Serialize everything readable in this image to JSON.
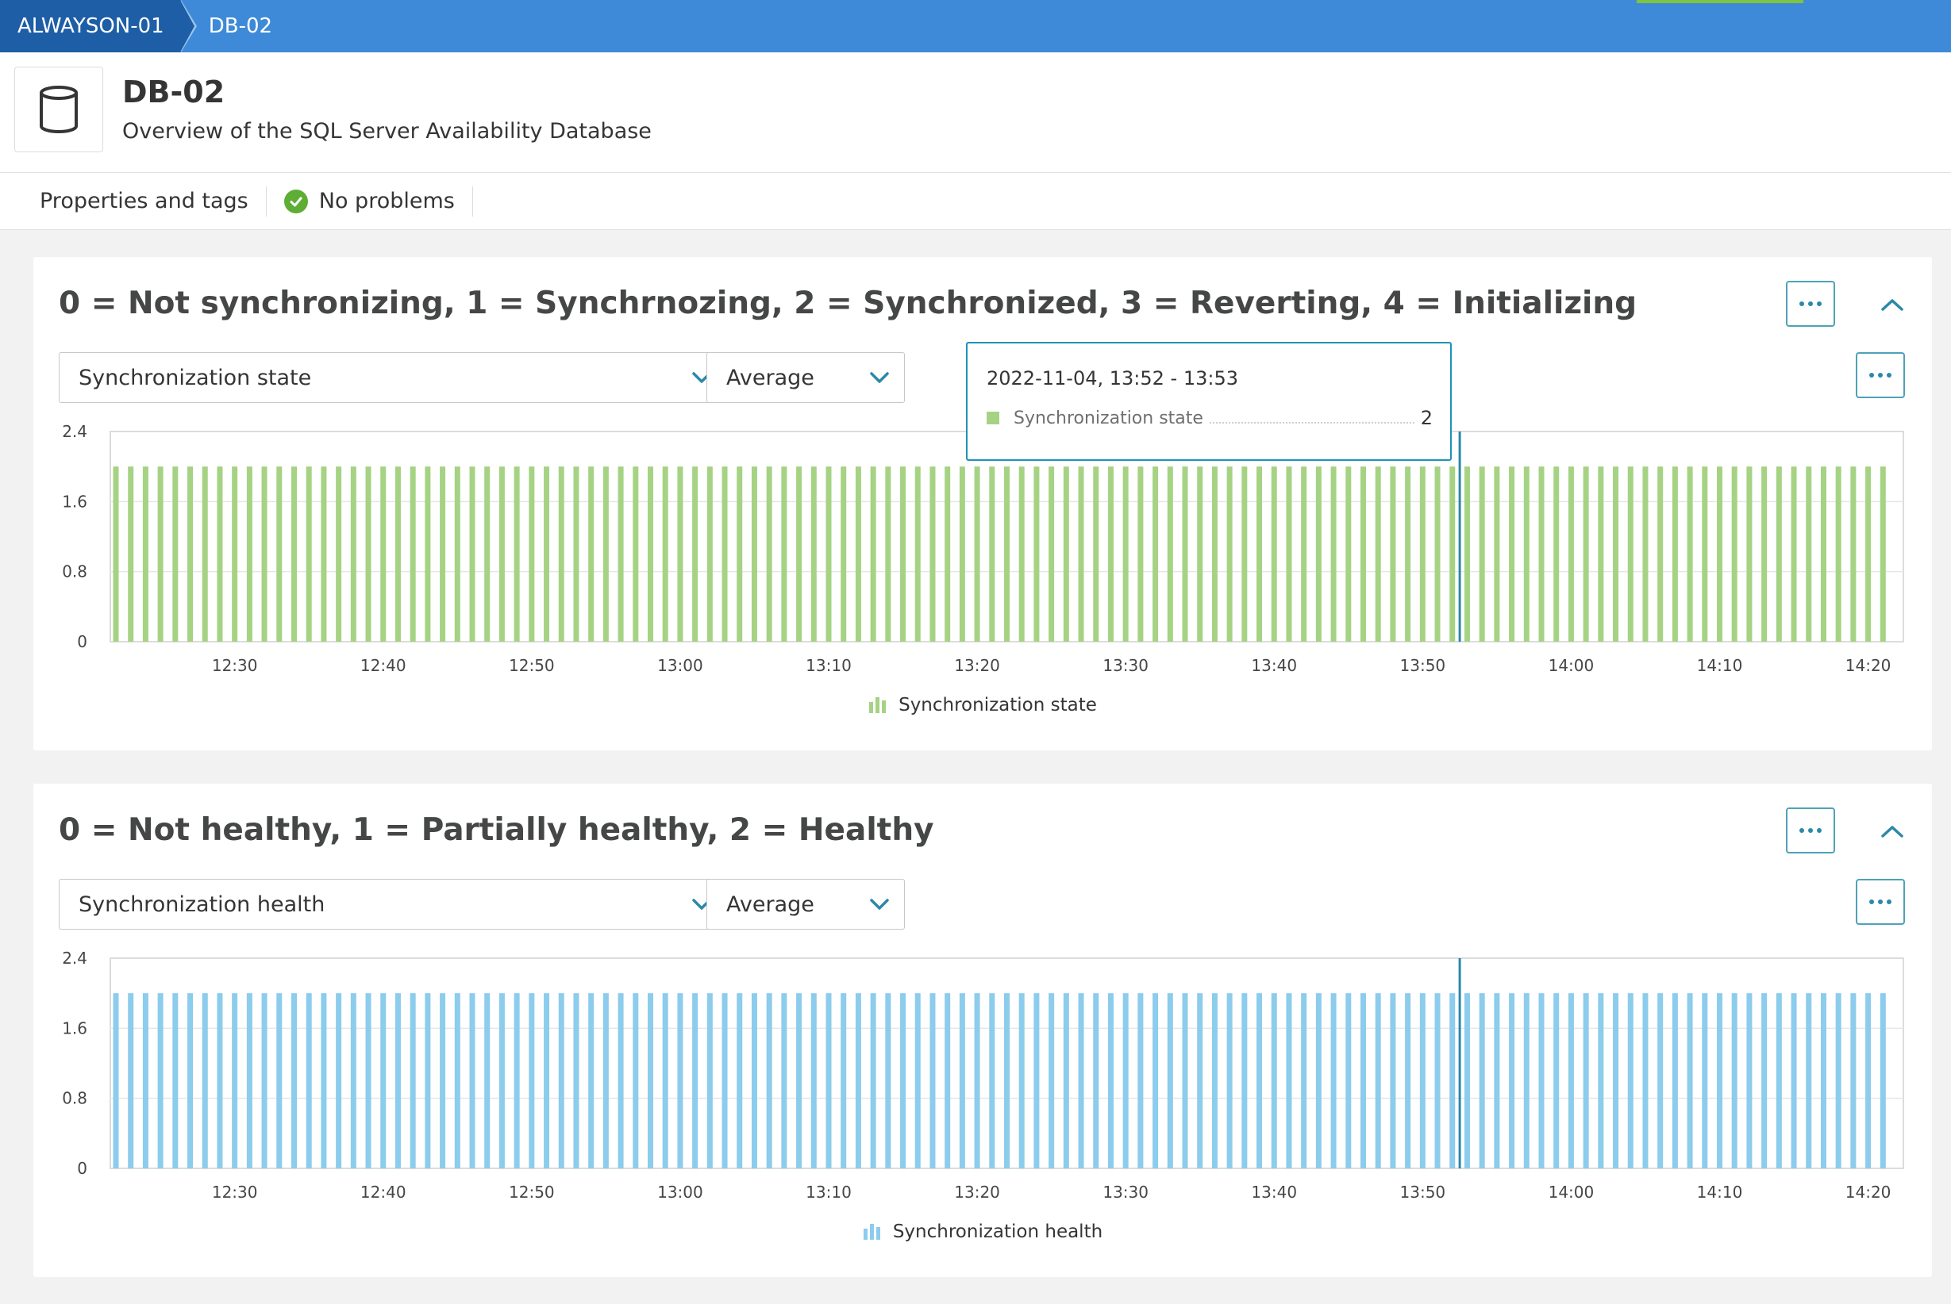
{
  "breadcrumb": {
    "items": [
      "ALWAYSON-01",
      "DB-02"
    ]
  },
  "header": {
    "title": "DB-02",
    "subtitle": "Overview of the SQL Server Availability Database",
    "icon": "database-icon"
  },
  "tabs": {
    "properties_label": "Properties and tags",
    "problems_label": "No problems"
  },
  "colors": {
    "accent": "#3e8ad8",
    "bar_green": "#a5d383",
    "bar_blue": "#8cccec",
    "marker": "#2b89a8",
    "ok": "#5ead35"
  },
  "panels": [
    {
      "title": "0 = Not synchronizing, 1 = Synchrnozing, 2 = Synchronized, 3 = Reverting, 4 = Initializing",
      "metric": "Synchronization state",
      "aggregation": "Average",
      "legend": "Synchronization state"
    },
    {
      "title": "0 = Not healthy, 1 = Partially healthy, 2 = Healthy",
      "metric": "Synchronization health",
      "aggregation": "Average",
      "legend": "Synchronization health"
    }
  ],
  "tooltip": {
    "time": "2022-11-04, 13:52 - 13:53",
    "label": "Synchronization state",
    "value": "2"
  },
  "chart_data": [
    {
      "type": "bar",
      "series": [
        {
          "name": "Synchronization state",
          "value_per_minute": 2
        }
      ],
      "x_range": [
        "12:22",
        "14:21"
      ],
      "x_ticks": [
        "12:30",
        "12:40",
        "12:50",
        "13:00",
        "13:10",
        "13:20",
        "13:30",
        "13:40",
        "13:50",
        "14:00",
        "14:10",
        "14:20"
      ],
      "y_ticks": [
        "0",
        "0.8",
        "1.6",
        "2.4"
      ],
      "ylim": [
        0,
        2.4
      ],
      "hover_marker": "13:52",
      "legend_position": "bottom"
    },
    {
      "type": "bar",
      "series": [
        {
          "name": "Synchronization health",
          "value_per_minute": 2
        }
      ],
      "x_range": [
        "12:22",
        "14:21"
      ],
      "x_ticks": [
        "12:30",
        "12:40",
        "12:50",
        "13:00",
        "13:10",
        "13:20",
        "13:30",
        "13:40",
        "13:50",
        "14:00",
        "14:10",
        "14:20"
      ],
      "y_ticks": [
        "0",
        "0.8",
        "1.6",
        "2.4"
      ],
      "ylim": [
        0,
        2.4
      ],
      "hover_marker": "13:52",
      "legend_position": "bottom"
    }
  ]
}
